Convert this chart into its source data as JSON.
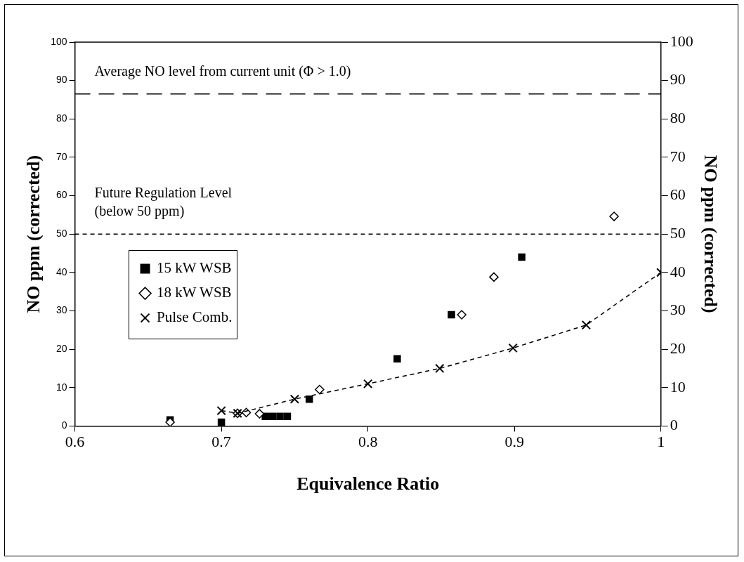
{
  "chart_data": {
    "type": "scatter",
    "xlabel": "Equivalence Ratio",
    "ylabel": "NO ppm (corrected)",
    "y2label": "NO ppm (corrected)",
    "xlim": [
      0.6,
      1.0
    ],
    "xticks": [
      0.6,
      0.7,
      0.8,
      0.9,
      1
    ],
    "ylim": [
      0,
      100
    ],
    "yticks": [
      0,
      10,
      20,
      30,
      40,
      50,
      60,
      70,
      80,
      90,
      100
    ],
    "y2lim": [
      0,
      100
    ],
    "y2ticks": [
      0,
      10,
      20,
      30,
      40,
      50,
      60,
      70,
      80,
      90,
      100
    ],
    "grid": false,
    "legend": "left",
    "ref_lines": [
      {
        "axis": "y",
        "value": 86.5,
        "label": "Average NO level from current unit (Φ > 1.0)",
        "color": "#000000",
        "line_style": "dashed"
      },
      {
        "axis": "y",
        "value": 50,
        "label": "Future Regulation Level\n(below 50 ppm)",
        "color": "#000000",
        "line_style": "dotted"
      }
    ],
    "series": [
      {
        "name": "15 kW WSB",
        "type": "scatter",
        "marker": "square",
        "color": "#000000",
        "x": [
          0.665,
          0.7,
          0.73,
          0.735,
          0.74,
          0.745,
          0.76,
          0.82,
          0.857,
          0.905
        ],
        "values": [
          1.6,
          1,
          2.5,
          2.5,
          2.5,
          2.5,
          7,
          17.5,
          29,
          44
        ]
      },
      {
        "name": "18 kW WSB",
        "type": "scatter",
        "marker": "diamond",
        "color": "#000000",
        "x": [
          0.665,
          0.711,
          0.717,
          0.726,
          0.767,
          0.864,
          0.886,
          0.968
        ],
        "values": [
          1,
          3.3,
          3.5,
          3.2,
          9.5,
          29,
          38.8,
          54.6
        ]
      },
      {
        "name": "Pulse Comb.",
        "type": "line",
        "marker": "cross",
        "line_style": "dashed",
        "color": "#000000",
        "x": [
          0.7,
          0.711,
          0.75,
          0.8,
          0.849,
          0.899,
          0.949,
          1.0
        ],
        "values": [
          4,
          3.3,
          7,
          11,
          15,
          20.3,
          26.3,
          40
        ]
      }
    ]
  }
}
